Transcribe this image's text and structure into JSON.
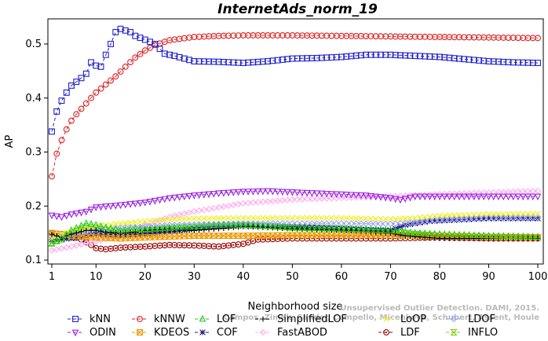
{
  "chart_data": {
    "type": "line",
    "title": "InternetAds_norm_19",
    "xlabel": "Neighborhood size",
    "ylabel": "AP",
    "xlim": [
      1,
      100
    ],
    "ylim": [
      0.1,
      0.55
    ],
    "xticks": [
      1,
      10,
      20,
      30,
      40,
      50,
      60,
      70,
      80,
      90,
      100
    ],
    "yticks": [
      0.1,
      0.2,
      0.3,
      0.4,
      0.5
    ],
    "grid": false,
    "legend_position": "bottom",
    "watermark": "Campos, Zimek, Sander, Campello, Micenkova, Schubert, Assent, Houle",
    "watermark_line1": "Unsupervised Outlier Detection. DAMI, 2015.",
    "series": [
      {
        "name": "kNN",
        "color": "#2020cc",
        "marker": "square",
        "dash": "4,3",
        "points": [
          [
            1,
            0.338
          ],
          [
            2,
            0.375
          ],
          [
            3,
            0.395
          ],
          [
            4,
            0.41
          ],
          [
            5,
            0.423
          ],
          [
            6,
            0.43
          ],
          [
            7,
            0.437
          ],
          [
            8,
            0.445
          ],
          [
            9,
            0.466
          ],
          [
            10,
            0.46
          ],
          [
            11,
            0.458
          ],
          [
            12,
            0.48
          ],
          [
            13,
            0.5
          ],
          [
            14,
            0.522
          ],
          [
            15,
            0.528
          ],
          [
            16,
            0.525
          ],
          [
            17,
            0.522
          ],
          [
            18,
            0.515
          ],
          [
            20,
            0.508
          ],
          [
            22,
            0.5
          ],
          [
            24,
            0.482
          ],
          [
            26,
            0.478
          ],
          [
            30,
            0.468
          ],
          [
            35,
            0.467
          ],
          [
            40,
            0.465
          ],
          [
            45,
            0.468
          ],
          [
            50,
            0.473
          ],
          [
            55,
            0.474
          ],
          [
            60,
            0.476
          ],
          [
            65,
            0.48
          ],
          [
            70,
            0.48
          ],
          [
            75,
            0.478
          ],
          [
            80,
            0.476
          ],
          [
            85,
            0.472
          ],
          [
            90,
            0.468
          ],
          [
            95,
            0.466
          ],
          [
            100,
            0.465
          ]
        ]
      },
      {
        "name": "kNNW",
        "color": "#dd2020",
        "marker": "circle",
        "dash": "4,3",
        "points": [
          [
            1,
            0.255
          ],
          [
            2,
            0.297
          ],
          [
            3,
            0.322
          ],
          [
            4,
            0.342
          ],
          [
            5,
            0.358
          ],
          [
            6,
            0.37
          ],
          [
            7,
            0.38
          ],
          [
            8,
            0.39
          ],
          [
            9,
            0.4
          ],
          [
            10,
            0.41
          ],
          [
            12,
            0.425
          ],
          [
            14,
            0.44
          ],
          [
            16,
            0.458
          ],
          [
            18,
            0.475
          ],
          [
            20,
            0.488
          ],
          [
            22,
            0.498
          ],
          [
            25,
            0.507
          ],
          [
            30,
            0.513
          ],
          [
            35,
            0.515
          ],
          [
            40,
            0.516
          ],
          [
            50,
            0.516
          ],
          [
            60,
            0.515
          ],
          [
            70,
            0.514
          ],
          [
            80,
            0.513
          ],
          [
            90,
            0.512
          ],
          [
            100,
            0.511
          ]
        ]
      },
      {
        "name": "LOF",
        "color": "#22cc22",
        "marker": "triangle",
        "dash": "4,3",
        "points": [
          [
            1,
            0.13
          ],
          [
            3,
            0.14
          ],
          [
            5,
            0.155
          ],
          [
            8,
            0.168
          ],
          [
            10,
            0.165
          ],
          [
            12,
            0.16
          ],
          [
            15,
            0.155
          ],
          [
            18,
            0.158
          ],
          [
            20,
            0.157
          ],
          [
            25,
            0.16
          ],
          [
            30,
            0.162
          ],
          [
            35,
            0.165
          ],
          [
            40,
            0.165
          ],
          [
            45,
            0.163
          ],
          [
            50,
            0.16
          ],
          [
            60,
            0.158
          ],
          [
            70,
            0.155
          ],
          [
            75,
            0.15
          ],
          [
            80,
            0.148
          ],
          [
            90,
            0.145
          ],
          [
            100,
            0.143
          ]
        ]
      },
      {
        "name": "SimplifiedLOF",
        "color": "#000000",
        "marker": "plus",
        "dash": "4,3",
        "points": [
          [
            1,
            0.148
          ],
          [
            3,
            0.142
          ],
          [
            5,
            0.148
          ],
          [
            8,
            0.155
          ],
          [
            10,
            0.155
          ],
          [
            12,
            0.152
          ],
          [
            15,
            0.15
          ],
          [
            18,
            0.152
          ],
          [
            20,
            0.155
          ],
          [
            25,
            0.157
          ],
          [
            30,
            0.155
          ],
          [
            35,
            0.158
          ],
          [
            40,
            0.162
          ],
          [
            45,
            0.16
          ],
          [
            50,
            0.158
          ],
          [
            60,
            0.155
          ],
          [
            70,
            0.15
          ],
          [
            73,
            0.145
          ],
          [
            80,
            0.14
          ],
          [
            90,
            0.14
          ],
          [
            100,
            0.14
          ]
        ]
      },
      {
        "name": "LoOP",
        "color": "#eeee22",
        "marker": "x",
        "dash": "4,3",
        "points": [
          [
            1,
            0.14
          ],
          [
            5,
            0.155
          ],
          [
            10,
            0.163
          ],
          [
            15,
            0.168
          ],
          [
            20,
            0.172
          ],
          [
            25,
            0.175
          ],
          [
            30,
            0.177
          ],
          [
            40,
            0.178
          ],
          [
            50,
            0.178
          ],
          [
            60,
            0.178
          ],
          [
            70,
            0.176
          ],
          [
            75,
            0.178
          ],
          [
            80,
            0.182
          ],
          [
            90,
            0.185
          ],
          [
            100,
            0.186
          ]
        ]
      },
      {
        "name": "LDOF",
        "color": "#9aa0ff",
        "marker": "diamond",
        "dash": "4,3",
        "points": [
          [
            1,
            0.142
          ],
          [
            5,
            0.148
          ],
          [
            10,
            0.155
          ],
          [
            15,
            0.16
          ],
          [
            20,
            0.162
          ],
          [
            25,
            0.165
          ],
          [
            30,
            0.166
          ],
          [
            40,
            0.168
          ],
          [
            50,
            0.168
          ],
          [
            60,
            0.168
          ],
          [
            70,
            0.167
          ],
          [
            75,
            0.17
          ],
          [
            80,
            0.175
          ],
          [
            90,
            0.178
          ],
          [
            100,
            0.18
          ]
        ]
      },
      {
        "name": "ODIN",
        "color": "#9922dd",
        "marker": "triangle-down",
        "dash": "4,3",
        "points": [
          [
            1,
            0.183
          ],
          [
            3,
            0.18
          ],
          [
            5,
            0.185
          ],
          [
            8,
            0.19
          ],
          [
            10,
            0.198
          ],
          [
            15,
            0.202
          ],
          [
            20,
            0.207
          ],
          [
            25,
            0.215
          ],
          [
            30,
            0.22
          ],
          [
            35,
            0.224
          ],
          [
            40,
            0.227
          ],
          [
            45,
            0.228
          ],
          [
            50,
            0.226
          ],
          [
            55,
            0.224
          ],
          [
            60,
            0.222
          ],
          [
            65,
            0.22
          ],
          [
            70,
            0.215
          ],
          [
            72,
            0.212
          ],
          [
            75,
            0.218
          ],
          [
            80,
            0.218
          ],
          [
            90,
            0.218
          ],
          [
            100,
            0.218
          ]
        ]
      },
      {
        "name": "KDEOS",
        "color": "#ee9900",
        "marker": "square-x",
        "dash": "4,3",
        "points": [
          [
            1,
            0.15
          ],
          [
            5,
            0.145
          ],
          [
            10,
            0.142
          ],
          [
            15,
            0.14
          ],
          [
            20,
            0.142
          ],
          [
            30,
            0.145
          ],
          [
            40,
            0.145
          ],
          [
            50,
            0.146
          ],
          [
            60,
            0.146
          ],
          [
            70,
            0.146
          ],
          [
            80,
            0.145
          ],
          [
            90,
            0.143
          ],
          [
            100,
            0.142
          ]
        ]
      },
      {
        "name": "COF",
        "color": "#1a1a77",
        "marker": "star",
        "dash": "4,3",
        "points": [
          [
            1,
            0.138
          ],
          [
            5,
            0.14
          ],
          [
            10,
            0.148
          ],
          [
            15,
            0.145
          ],
          [
            20,
            0.148
          ],
          [
            25,
            0.152
          ],
          [
            30,
            0.158
          ],
          [
            35,
            0.162
          ],
          [
            40,
            0.164
          ],
          [
            45,
            0.163
          ],
          [
            50,
            0.162
          ],
          [
            55,
            0.16
          ],
          [
            60,
            0.158
          ],
          [
            65,
            0.156
          ],
          [
            70,
            0.155
          ],
          [
            73,
            0.165
          ],
          [
            78,
            0.172
          ],
          [
            85,
            0.175
          ],
          [
            90,
            0.177
          ],
          [
            100,
            0.177
          ]
        ]
      },
      {
        "name": "FastABOD",
        "color": "#ffaaee",
        "marker": "diamond",
        "dash": "4,3",
        "points": [
          [
            1,
            0.118
          ],
          [
            5,
            0.125
          ],
          [
            10,
            0.135
          ],
          [
            15,
            0.145
          ],
          [
            20,
            0.165
          ],
          [
            25,
            0.18
          ],
          [
            30,
            0.19
          ],
          [
            40,
            0.205
          ],
          [
            50,
            0.212
          ],
          [
            60,
            0.215
          ],
          [
            70,
            0.218
          ],
          [
            80,
            0.222
          ],
          [
            90,
            0.225
          ],
          [
            100,
            0.228
          ]
        ]
      },
      {
        "name": "LDF",
        "color": "#990000",
        "marker": "circle-dot",
        "dash": "4,3",
        "points": [
          [
            1,
            0.15
          ],
          [
            3,
            0.148
          ],
          [
            5,
            0.145
          ],
          [
            7,
            0.138
          ],
          [
            9,
            0.128
          ],
          [
            10,
            0.122
          ],
          [
            12,
            0.12
          ],
          [
            15,
            0.123
          ],
          [
            20,
            0.125
          ],
          [
            25,
            0.128
          ],
          [
            30,
            0.127
          ],
          [
            35,
            0.125
          ],
          [
            40,
            0.13
          ],
          [
            43,
            0.138
          ],
          [
            50,
            0.14
          ],
          [
            60,
            0.14
          ],
          [
            70,
            0.14
          ],
          [
            80,
            0.142
          ],
          [
            90,
            0.14
          ],
          [
            100,
            0.14
          ]
        ]
      },
      {
        "name": "INFLO",
        "color": "#88cc22",
        "marker": "hourglass",
        "dash": "4,3",
        "points": [
          [
            1,
            0.132
          ],
          [
            3,
            0.138
          ],
          [
            5,
            0.15
          ],
          [
            8,
            0.16
          ],
          [
            10,
            0.158
          ],
          [
            15,
            0.152
          ],
          [
            20,
            0.155
          ],
          [
            25,
            0.158
          ],
          [
            30,
            0.16
          ],
          [
            35,
            0.163
          ],
          [
            40,
            0.165
          ],
          [
            45,
            0.163
          ],
          [
            50,
            0.16
          ],
          [
            60,
            0.158
          ],
          [
            70,
            0.153
          ],
          [
            75,
            0.148
          ],
          [
            80,
            0.145
          ],
          [
            90,
            0.143
          ],
          [
            100,
            0.142
          ]
        ]
      }
    ]
  }
}
